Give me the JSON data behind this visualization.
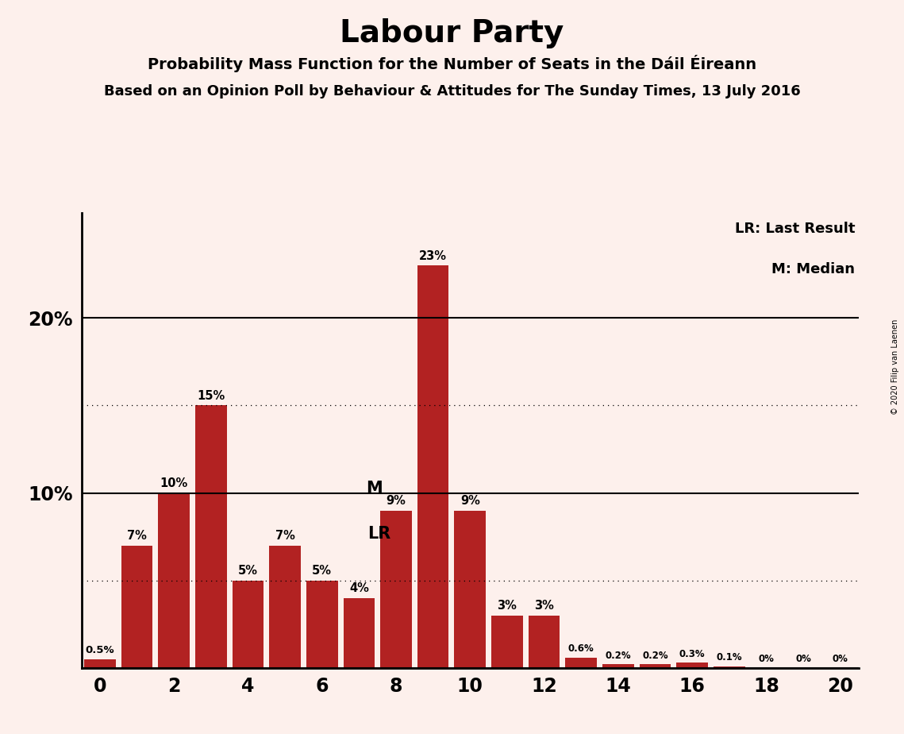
{
  "title": "Labour Party",
  "subtitle1": "Probability Mass Function for the Number of Seats in the Dáil Éireann",
  "subtitle2": "Based on an Opinion Poll by Behaviour & Attitudes for The Sunday Times, 13 July 2016",
  "copyright": "© 2020 Filip van Laenen",
  "legend_lr": "LR: Last Result",
  "legend_m": "M: Median",
  "seats": [
    0,
    1,
    2,
    3,
    4,
    5,
    6,
    7,
    8,
    9,
    10,
    11,
    12,
    13,
    14,
    15,
    16,
    17,
    18,
    19,
    20
  ],
  "probabilities": [
    0.5,
    7,
    10,
    15,
    5,
    7,
    5,
    4,
    9,
    23,
    9,
    3,
    3,
    0.6,
    0.2,
    0.2,
    0.3,
    0.1,
    0,
    0,
    0
  ],
  "labels": [
    "0.5%",
    "7%",
    "10%",
    "15%",
    "5%",
    "7%",
    "5%",
    "4%",
    "9%",
    "23%",
    "9%",
    "3%",
    "3%",
    "0.6%",
    "0.2%",
    "0.2%",
    "0.3%",
    "0.1%",
    "0%",
    "0%",
    "0%"
  ],
  "bar_color": "#b22222",
  "background_color": "#fdf0ec",
  "median_seat": 8,
  "last_result_seat": 7,
  "hline_solid": [
    0,
    10,
    20
  ],
  "hline_dotted": [
    5,
    15
  ],
  "xlim": [
    -0.5,
    20.5
  ],
  "ylim": [
    0,
    26
  ],
  "bar_width": 0.85
}
